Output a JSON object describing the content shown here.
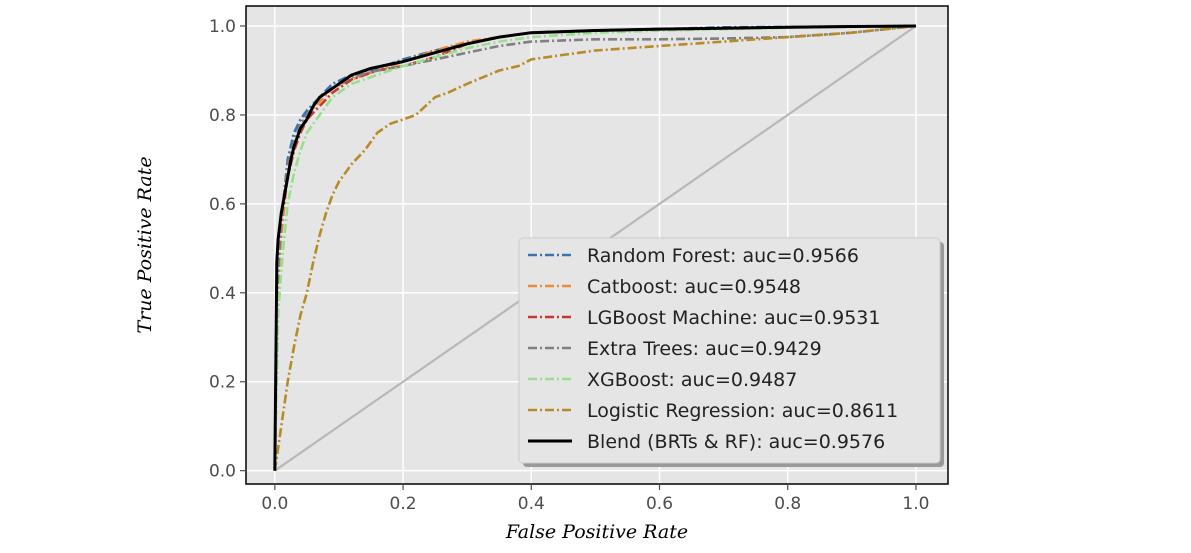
{
  "chart_data": {
    "type": "line",
    "xlabel": "False Positive Rate",
    "ylabel": "True Positive Rate",
    "xlim": [
      -0.045,
      1.05
    ],
    "ylim": [
      -0.03,
      1.045
    ],
    "x_ticks": [
      "0.0",
      "0.2",
      "0.4",
      "0.6",
      "0.8",
      "1.0"
    ],
    "y_ticks": [
      "0.0",
      "0.2",
      "0.4",
      "0.6",
      "0.8",
      "1.0"
    ],
    "grid": true,
    "legend_position": "lower-right",
    "diagonal_reference": true,
    "series": [
      {
        "name": "Random Forest: auc=0.9566",
        "color": "#3a74b0",
        "style": "dashdot",
        "x": [
          0,
          0.005,
          0.01,
          0.015,
          0.02,
          0.03,
          0.04,
          0.05,
          0.07,
          0.09,
          0.12,
          0.16,
          0.2,
          0.25,
          0.3,
          0.35,
          0.4,
          0.5,
          0.6,
          0.65,
          0.7,
          0.8,
          0.9,
          1.0
        ],
        "y": [
          0,
          0.45,
          0.55,
          0.63,
          0.7,
          0.76,
          0.79,
          0.81,
          0.84,
          0.87,
          0.89,
          0.905,
          0.925,
          0.945,
          0.96,
          0.975,
          0.985,
          0.99,
          0.993,
          0.995,
          0.997,
          0.998,
          0.999,
          1.0
        ]
      },
      {
        "name": "Catboost: auc=0.9548",
        "color": "#f08a34",
        "style": "dashdot",
        "x": [
          0,
          0.005,
          0.01,
          0.015,
          0.02,
          0.03,
          0.04,
          0.05,
          0.07,
          0.09,
          0.12,
          0.16,
          0.2,
          0.25,
          0.3,
          0.35,
          0.4,
          0.5,
          0.6,
          0.7,
          0.8,
          0.9,
          1.0
        ],
        "y": [
          0,
          0.43,
          0.53,
          0.6,
          0.67,
          0.73,
          0.77,
          0.8,
          0.83,
          0.86,
          0.88,
          0.9,
          0.92,
          0.945,
          0.965,
          0.975,
          0.985,
          0.99,
          0.993,
          0.995,
          0.997,
          0.999,
          1.0
        ]
      },
      {
        "name": "LGBoost Machine: auc=0.9531",
        "color": "#c63a2c",
        "style": "dashdot",
        "x": [
          0,
          0.005,
          0.01,
          0.015,
          0.02,
          0.03,
          0.04,
          0.05,
          0.07,
          0.09,
          0.12,
          0.16,
          0.2,
          0.25,
          0.3,
          0.35,
          0.4,
          0.5,
          0.6,
          0.7,
          0.8,
          0.9,
          1.0
        ],
        "y": [
          0,
          0.5,
          0.57,
          0.61,
          0.66,
          0.72,
          0.76,
          0.79,
          0.82,
          0.85,
          0.88,
          0.9,
          0.91,
          0.93,
          0.96,
          0.975,
          0.985,
          0.99,
          0.993,
          0.995,
          0.997,
          0.999,
          1.0
        ]
      },
      {
        "name": "Extra Trees: auc=0.9429",
        "color": "#808080",
        "style": "dashdot",
        "x": [
          0,
          0.005,
          0.01,
          0.015,
          0.02,
          0.03,
          0.04,
          0.05,
          0.07,
          0.09,
          0.12,
          0.16,
          0.2,
          0.25,
          0.3,
          0.35,
          0.4,
          0.5,
          0.6,
          0.7,
          0.8,
          0.9,
          1.0
        ],
        "y": [
          0,
          0.45,
          0.56,
          0.63,
          0.69,
          0.74,
          0.78,
          0.8,
          0.84,
          0.86,
          0.885,
          0.9,
          0.91,
          0.925,
          0.94,
          0.955,
          0.965,
          0.97,
          0.97,
          0.972,
          0.975,
          0.985,
          1.0
        ]
      },
      {
        "name": "XGBoost: auc=0.9487",
        "color": "#98e08c",
        "style": "dashdot",
        "x": [
          0,
          0.005,
          0.01,
          0.015,
          0.02,
          0.03,
          0.04,
          0.05,
          0.07,
          0.09,
          0.12,
          0.16,
          0.2,
          0.25,
          0.3,
          0.35,
          0.4,
          0.5,
          0.6,
          0.7,
          0.8,
          0.9,
          1.0
        ],
        "y": [
          0,
          0.35,
          0.45,
          0.53,
          0.6,
          0.67,
          0.72,
          0.76,
          0.8,
          0.84,
          0.87,
          0.89,
          0.91,
          0.93,
          0.95,
          0.965,
          0.975,
          0.985,
          0.99,
          0.993,
          0.996,
          0.998,
          1.0
        ]
      },
      {
        "name": "Logistic Regression: auc=0.8611",
        "color": "#b88a28",
        "style": "dashdot",
        "x": [
          0,
          0.005,
          0.01,
          0.015,
          0.02,
          0.03,
          0.04,
          0.05,
          0.06,
          0.07,
          0.08,
          0.09,
          0.1,
          0.12,
          0.14,
          0.16,
          0.18,
          0.2,
          0.22,
          0.25,
          0.27,
          0.3,
          0.35,
          0.38,
          0.4,
          0.45,
          0.5,
          0.6,
          0.7,
          0.8,
          0.9,
          1.0
        ],
        "y": [
          0,
          0.05,
          0.1,
          0.15,
          0.2,
          0.28,
          0.35,
          0.4,
          0.47,
          0.53,
          0.58,
          0.62,
          0.65,
          0.69,
          0.72,
          0.76,
          0.78,
          0.79,
          0.8,
          0.84,
          0.85,
          0.87,
          0.9,
          0.91,
          0.925,
          0.935,
          0.945,
          0.955,
          0.965,
          0.975,
          0.985,
          1.0
        ]
      },
      {
        "name": "Blend (BRTs & RF): auc=0.9576",
        "color": "#000000",
        "style": "solid",
        "x": [
          0,
          0.003,
          0.005,
          0.01,
          0.015,
          0.02,
          0.025,
          0.03,
          0.04,
          0.05,
          0.06,
          0.07,
          0.09,
          0.12,
          0.15,
          0.2,
          0.25,
          0.3,
          0.35,
          0.4,
          0.5,
          0.6,
          0.7,
          0.8,
          0.9,
          1.0
        ],
        "y": [
          0,
          0.47,
          0.52,
          0.58,
          0.62,
          0.66,
          0.7,
          0.73,
          0.77,
          0.79,
          0.82,
          0.84,
          0.86,
          0.89,
          0.905,
          0.92,
          0.94,
          0.96,
          0.975,
          0.985,
          0.99,
          0.993,
          0.995,
          0.997,
          0.999,
          1.0
        ]
      }
    ]
  }
}
